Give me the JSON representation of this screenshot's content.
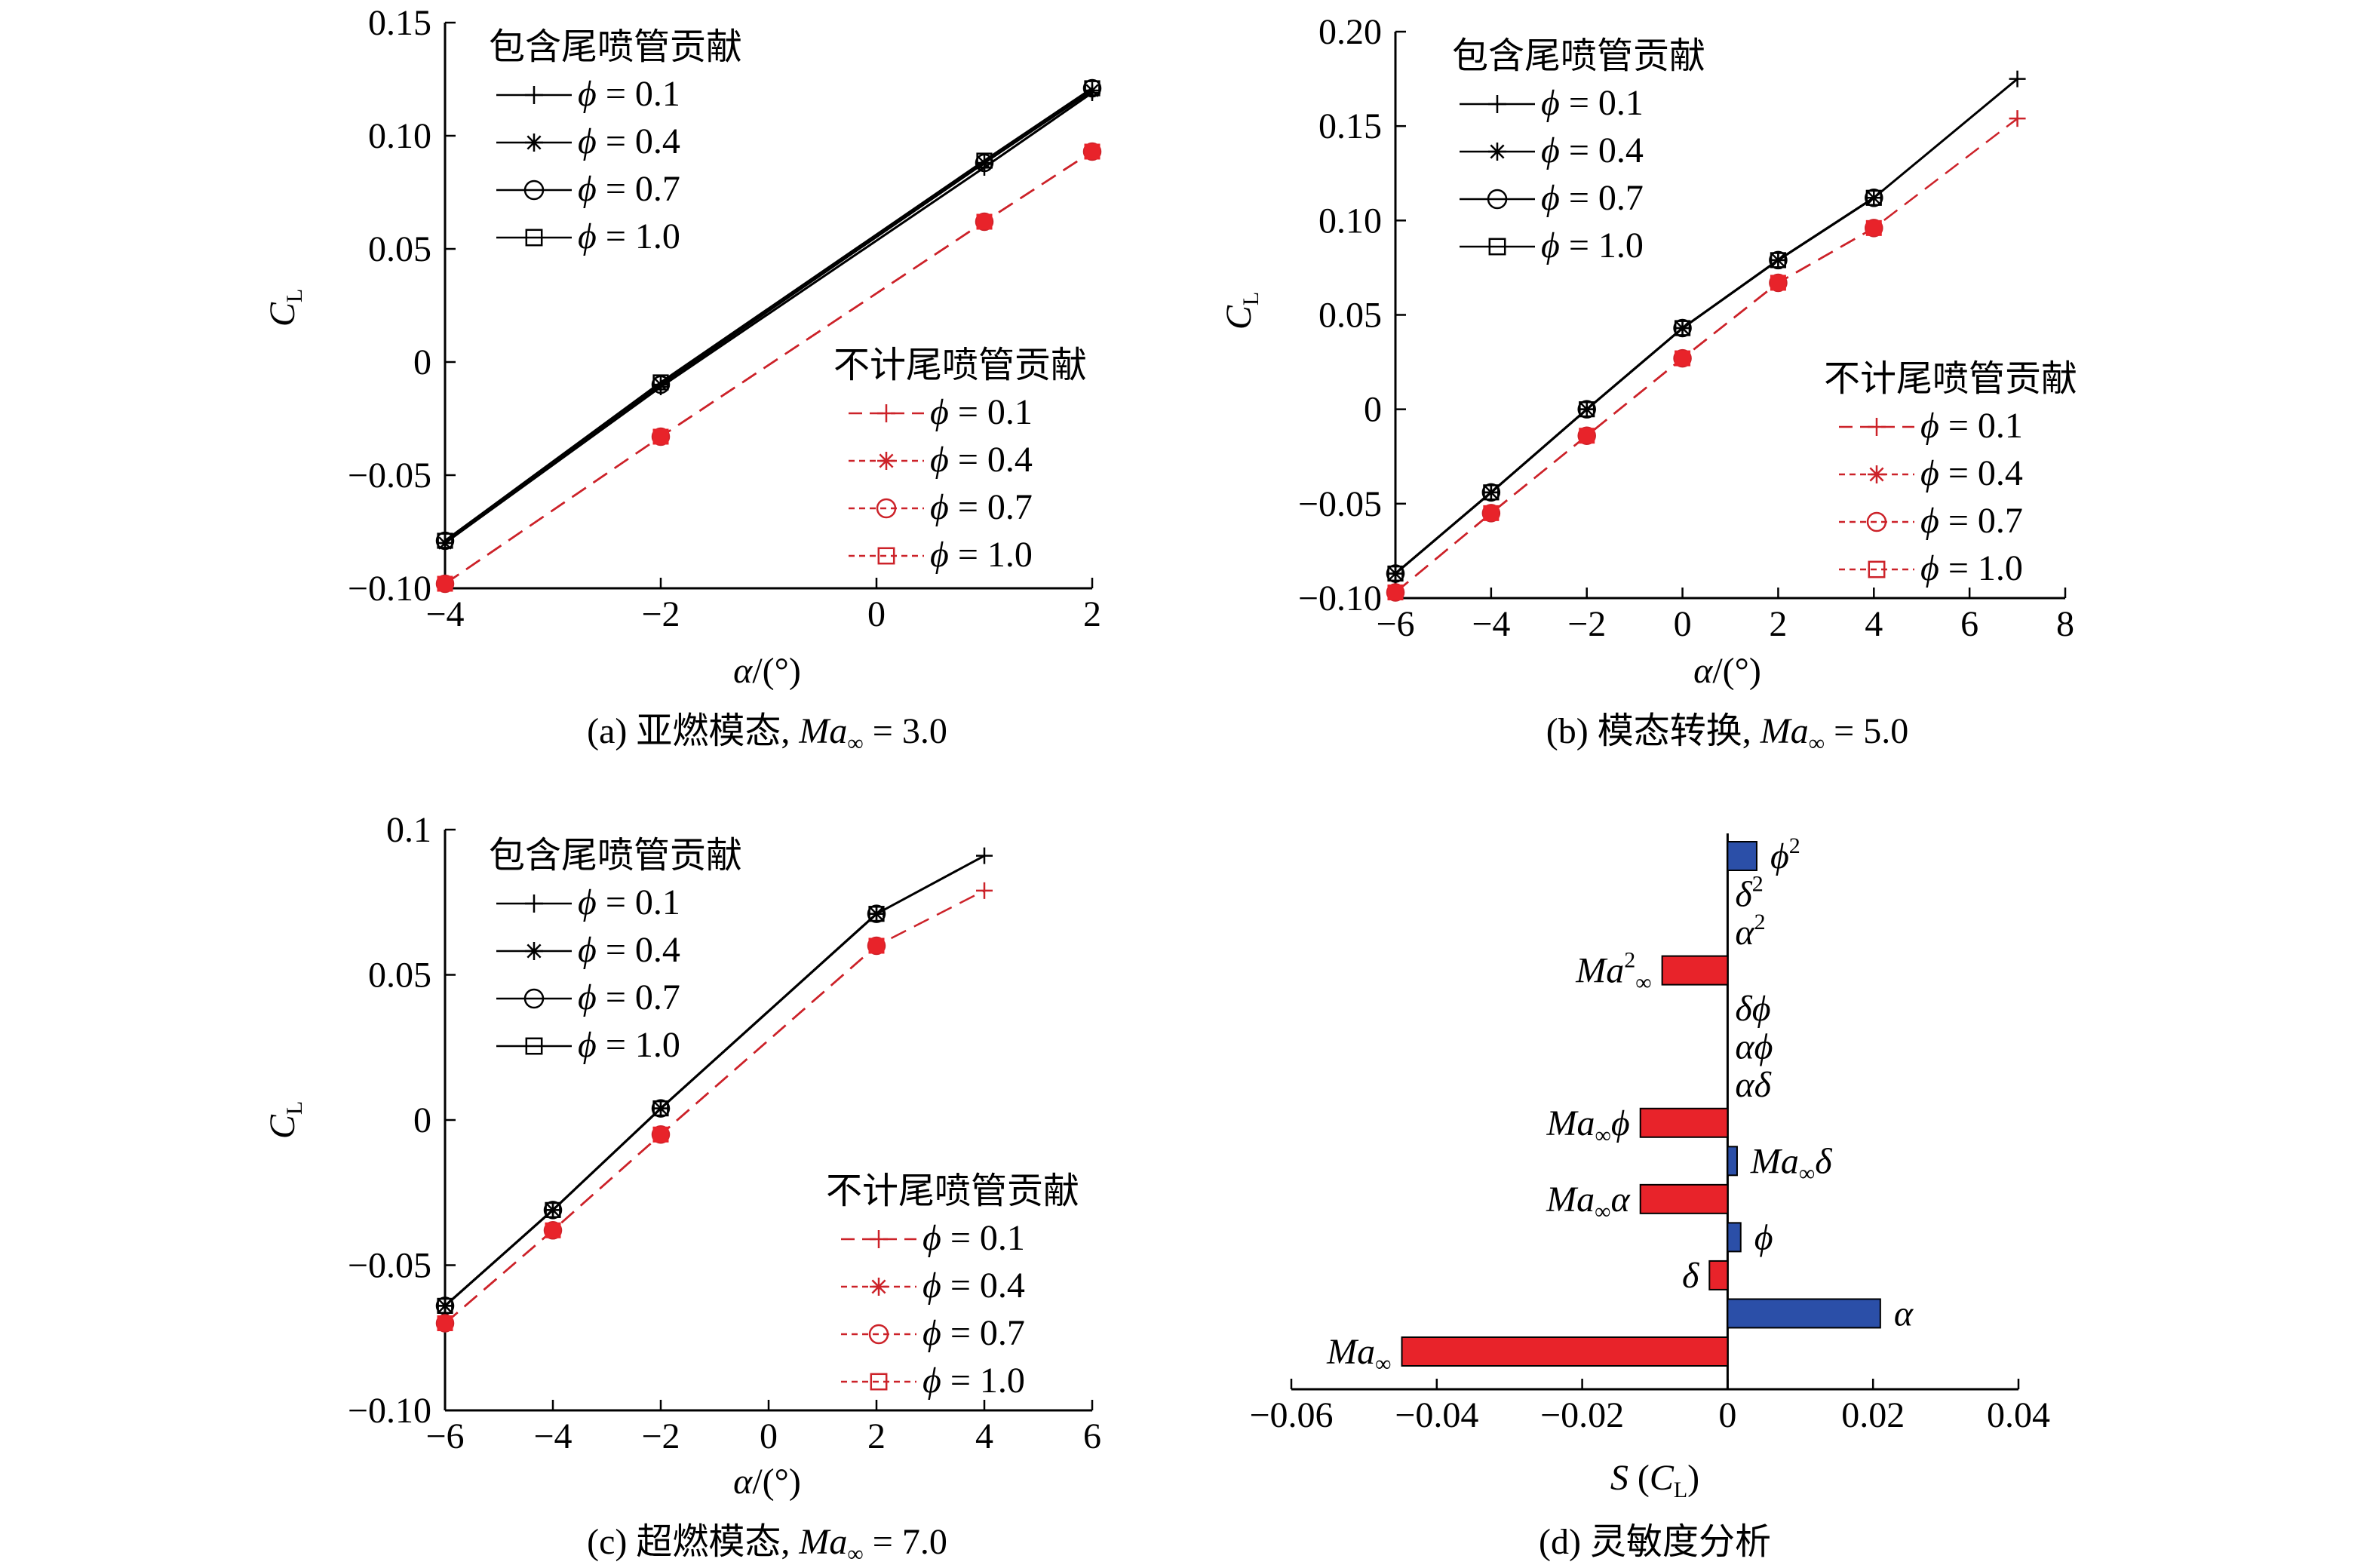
{
  "chart_data": [
    {
      "type": "line",
      "caption": {
        "prefix": "(a) 亚燃模态,",
        "var": "Ma",
        "sub": "∞",
        "suffix": "= 3.0"
      },
      "xlabel": {
        "var": "α",
        "unit": "/(°)"
      },
      "ylabel": {
        "var": "C",
        "sub": "L"
      },
      "xlim": [
        -4,
        2
      ],
      "ylim": [
        -0.1,
        0.15
      ],
      "xticks": [
        -4,
        -2,
        0,
        2
      ],
      "xtick_labels": [
        "−4",
        "−2",
        "0",
        "2"
      ],
      "yticks": [
        -0.1,
        -0.05,
        0,
        0.05,
        0.1,
        0.15
      ],
      "ytick_labels": [
        "−0.10",
        "−0.05",
        "0",
        "0.05",
        "0.10",
        "0.15"
      ],
      "legend_groups": [
        {
          "title": "包含尾喷管贡献",
          "color": "#000000",
          "style": "solid",
          "position": "top-left",
          "entries": [
            "= 0.1",
            "= 0.4",
            "= 0.7",
            "= 1.0"
          ]
        },
        {
          "title": "不计尾喷管贡献",
          "color": "#cc2229",
          "style": "dashed",
          "position": "lower-right",
          "entries": [
            "= 0.1",
            "= 0.4",
            "= 0.7",
            "= 1.0"
          ]
        }
      ],
      "legend_symbol": "ϕ",
      "series": [
        {
          "group": 0,
          "name": "ϕ = 0.1",
          "marker": "plus",
          "x": [
            -4,
            -2,
            1,
            2
          ],
          "y": [
            -0.08,
            -0.011,
            0.086,
            0.119
          ]
        },
        {
          "group": 0,
          "name": "ϕ = 0.4",
          "marker": "star",
          "x": [
            -4,
            -2,
            1,
            2
          ],
          "y": [
            -0.08,
            -0.01,
            0.088,
            0.12
          ]
        },
        {
          "group": 0,
          "name": "ϕ = 0.7",
          "marker": "circle",
          "x": [
            -4,
            -2,
            1,
            2
          ],
          "y": [
            -0.079,
            -0.01,
            0.088,
            0.121
          ]
        },
        {
          "group": 0,
          "name": "ϕ = 1.0",
          "marker": "square",
          "x": [
            -4,
            -2,
            1,
            2
          ],
          "y": [
            -0.079,
            -0.009,
            0.089,
            0.121
          ]
        },
        {
          "group": 1,
          "name": "ϕ = 0.1",
          "marker": "plus",
          "x": [
            -4,
            -2,
            1,
            2
          ],
          "y": [
            -0.098,
            -0.033,
            0.062,
            0.093
          ]
        },
        {
          "group": 1,
          "name": "ϕ = 0.4",
          "marker": "star",
          "x": [
            -4,
            -2,
            1,
            2
          ],
          "y": [
            -0.098,
            -0.033,
            0.062,
            0.093
          ]
        },
        {
          "group": 1,
          "name": "ϕ = 0.7",
          "marker": "circle",
          "x": [
            -4,
            -2,
            1,
            2
          ],
          "y": [
            -0.098,
            -0.033,
            0.062,
            0.093
          ]
        },
        {
          "group": 1,
          "name": "ϕ = 1.0",
          "marker": "square",
          "x": [
            -4,
            -2,
            1,
            2
          ],
          "y": [
            -0.098,
            -0.033,
            0.062,
            0.093
          ]
        }
      ]
    },
    {
      "type": "line",
      "caption": {
        "prefix": "(b) 模态转换,",
        "var": "Ma",
        "sub": "∞",
        "suffix": "= 5.0"
      },
      "xlabel": {
        "var": "α",
        "unit": "/(°)"
      },
      "ylabel": {
        "var": "C",
        "sub": "L"
      },
      "xlim": [
        -6,
        8
      ],
      "ylim": [
        -0.1,
        0.2
      ],
      "xticks": [
        -6,
        -4,
        -2,
        0,
        2,
        4,
        6,
        8
      ],
      "xtick_labels": [
        "−6",
        "−4",
        "−2",
        "0",
        "2",
        "4",
        "6",
        "8"
      ],
      "yticks": [
        -0.1,
        -0.05,
        0,
        0.05,
        0.1,
        0.15,
        0.2
      ],
      "ytick_labels": [
        "−0.10",
        "−0.05",
        "0",
        "0.05",
        "0.10",
        "0.15",
        "0.20"
      ],
      "legend_groups": [
        {
          "title": "包含尾喷管贡献",
          "color": "#000000",
          "style": "solid",
          "position": "top-left",
          "entries": [
            "= 0.1",
            "= 0.4",
            "= 0.7",
            "= 1.0"
          ]
        },
        {
          "title": "不计尾喷管贡献",
          "color": "#cc2229",
          "style": "dashed",
          "position": "lower-right",
          "entries": [
            "= 0.1",
            "= 0.4",
            "= 0.7",
            "= 1.0"
          ]
        }
      ],
      "legend_symbol": "ϕ",
      "series": [
        {
          "group": 0,
          "name": "ϕ = 0.1",
          "marker": "plus",
          "x": [
            -6,
            -4,
            -2,
            0,
            2,
            4,
            7
          ],
          "y": [
            -0.087,
            -0.044,
            0.0,
            0.043,
            0.079,
            0.112,
            0.175
          ]
        },
        {
          "group": 0,
          "name": "ϕ = 0.4",
          "marker": "star",
          "x": [
            -6,
            -4,
            -2,
            0,
            2,
            4
          ],
          "y": [
            -0.087,
            -0.044,
            0.0,
            0.043,
            0.079,
            0.112
          ]
        },
        {
          "group": 0,
          "name": "ϕ = 0.7",
          "marker": "circle",
          "x": [
            -6,
            -4,
            -2,
            0,
            2,
            4
          ],
          "y": [
            -0.087,
            -0.044,
            0.0,
            0.043,
            0.079,
            0.112
          ]
        },
        {
          "group": 0,
          "name": "ϕ = 1.0",
          "marker": "square",
          "x": [
            -6,
            -4,
            -2,
            0,
            2,
            4
          ],
          "y": [
            -0.087,
            -0.044,
            0.0,
            0.043,
            0.079,
            0.112
          ]
        },
        {
          "group": 1,
          "name": "ϕ = 0.1",
          "marker": "plus",
          "x": [
            -6,
            -4,
            -2,
            0,
            2,
            4,
            7
          ],
          "y": [
            -0.097,
            -0.055,
            -0.014,
            0.027,
            0.067,
            0.096,
            0.154
          ]
        },
        {
          "group": 1,
          "name": "ϕ = 0.4",
          "marker": "star",
          "x": [
            -6,
            -4,
            -2,
            0,
            2,
            4
          ],
          "y": [
            -0.097,
            -0.055,
            -0.014,
            0.027,
            0.067,
            0.096
          ]
        },
        {
          "group": 1,
          "name": "ϕ = 0.7",
          "marker": "circle",
          "x": [
            -6,
            -4,
            -2,
            0,
            2,
            4
          ],
          "y": [
            -0.097,
            -0.055,
            -0.014,
            0.027,
            0.067,
            0.096
          ]
        },
        {
          "group": 1,
          "name": "ϕ = 1.0",
          "marker": "square",
          "x": [
            -6,
            -4,
            -2,
            0,
            2,
            4
          ],
          "y": [
            -0.097,
            -0.055,
            -0.014,
            0.027,
            0.067,
            0.096
          ]
        }
      ]
    },
    {
      "type": "line",
      "caption": {
        "prefix": "(c) 超燃模态,",
        "var": "Ma",
        "sub": "∞",
        "suffix": "= 7.0"
      },
      "xlabel": {
        "var": "α",
        "unit": "/(°)"
      },
      "ylabel": {
        "var": "C",
        "sub": "L"
      },
      "xlim": [
        -6,
        6
      ],
      "ylim": [
        -0.1,
        0.1
      ],
      "xticks": [
        -6,
        -4,
        -2,
        0,
        2,
        4,
        6
      ],
      "xtick_labels": [
        "−6",
        "−4",
        "−2",
        "0",
        "2",
        "4",
        "6"
      ],
      "yticks": [
        -0.1,
        -0.05,
        0,
        0.05,
        0.1
      ],
      "ytick_labels": [
        "−0.10",
        "−0.05",
        "0",
        "0.05",
        "0.1"
      ],
      "legend_groups": [
        {
          "title": "包含尾喷管贡献",
          "color": "#000000",
          "style": "solid",
          "position": "top-left",
          "entries": [
            "= 0.1",
            "= 0.4",
            "= 0.7",
            "= 1.0"
          ]
        },
        {
          "title": "不计尾喷管贡献",
          "color": "#cc2229",
          "style": "dashed",
          "position": "lower-right",
          "entries": [
            "= 0.1",
            "= 0.4",
            "= 0.7",
            "= 1.0"
          ]
        }
      ],
      "legend_symbol": "ϕ",
      "series": [
        {
          "group": 0,
          "name": "ϕ = 0.1",
          "marker": "plus",
          "x": [
            -6,
            -4,
            -2,
            2,
            4
          ],
          "y": [
            -0.064,
            -0.031,
            0.004,
            0.071,
            0.091
          ]
        },
        {
          "group": 0,
          "name": "ϕ = 0.4",
          "marker": "star",
          "x": [
            -6,
            -4,
            -2,
            2
          ],
          "y": [
            -0.064,
            -0.031,
            0.004,
            0.071
          ]
        },
        {
          "group": 0,
          "name": "ϕ = 0.7",
          "marker": "circle",
          "x": [
            -6,
            -4,
            -2,
            2
          ],
          "y": [
            -0.064,
            -0.031,
            0.004,
            0.071
          ]
        },
        {
          "group": 0,
          "name": "ϕ = 1.0",
          "marker": "square",
          "x": [
            -6,
            -4,
            -2,
            2
          ],
          "y": [
            -0.064,
            -0.031,
            0.004,
            0.071
          ]
        },
        {
          "group": 1,
          "name": "ϕ = 0.1",
          "marker": "plus",
          "x": [
            -6,
            -4,
            -2,
            2,
            4
          ],
          "y": [
            -0.07,
            -0.038,
            -0.005,
            0.06,
            0.079
          ]
        },
        {
          "group": 1,
          "name": "ϕ = 0.4",
          "marker": "star",
          "x": [
            -6,
            -4,
            -2,
            2
          ],
          "y": [
            -0.07,
            -0.038,
            -0.005,
            0.06
          ]
        },
        {
          "group": 1,
          "name": "ϕ = 0.7",
          "marker": "circle",
          "x": [
            -6,
            -4,
            -2,
            2
          ],
          "y": [
            -0.07,
            -0.038,
            -0.005,
            0.06
          ]
        },
        {
          "group": 1,
          "name": "ϕ = 1.0",
          "marker": "square",
          "x": [
            -6,
            -4,
            -2,
            2
          ],
          "y": [
            -0.07,
            -0.038,
            -0.005,
            0.06
          ]
        }
      ]
    },
    {
      "type": "bar",
      "orientation": "horizontal",
      "caption": {
        "prefix": "(d) 灵敏度分析"
      },
      "xlabel": {
        "var": "S",
        "paren_var": "C",
        "sub": "L"
      },
      "xlim": [
        -0.06,
        0.04
      ],
      "xticks": [
        -0.06,
        -0.04,
        -0.02,
        0,
        0.02,
        0.04
      ],
      "xtick_labels": [
        "−0.06",
        "−0.04",
        "−0.02",
        "0",
        "0.02",
        "0.04"
      ],
      "colors": {
        "positive": "#2b4fa8",
        "negative": "#e8232a"
      },
      "categories": [
        {
          "parts": [
            {
              "t": "ϕ"
            },
            {
              "t": "2",
              "sup": true
            }
          ],
          "value": 0.004
        },
        {
          "parts": [
            {
              "t": "δ"
            },
            {
              "t": "2",
              "sup": true
            }
          ],
          "value": 0
        },
        {
          "parts": [
            {
              "t": "α"
            },
            {
              "t": "2",
              "sup": true
            }
          ],
          "value": 0
        },
        {
          "parts": [
            {
              "t": "Ma"
            },
            {
              "t": "2",
              "sup": true
            },
            {
              "t": "∞",
              "sub": true
            }
          ],
          "value": -0.009
        },
        {
          "parts": [
            {
              "t": "δϕ"
            }
          ],
          "value": 0
        },
        {
          "parts": [
            {
              "t": "αϕ"
            }
          ],
          "value": 0
        },
        {
          "parts": [
            {
              "t": "αδ"
            }
          ],
          "value": 0
        },
        {
          "parts": [
            {
              "t": "Ma"
            },
            {
              "t": "∞",
              "sub": true
            },
            {
              "t": "ϕ"
            }
          ],
          "value": -0.012
        },
        {
          "parts": [
            {
              "t": "Ma"
            },
            {
              "t": "∞",
              "sub": true
            },
            {
              "t": "δ"
            }
          ],
          "value": 0.0013
        },
        {
          "parts": [
            {
              "t": "Ma"
            },
            {
              "t": "∞",
              "sub": true
            },
            {
              "t": "α"
            }
          ],
          "value": -0.012
        },
        {
          "parts": [
            {
              "t": "ϕ"
            }
          ],
          "value": 0.0018
        },
        {
          "parts": [
            {
              "t": "δ"
            }
          ],
          "value": -0.0025
        },
        {
          "parts": [
            {
              "t": "α"
            }
          ],
          "value": 0.021
        },
        {
          "parts": [
            {
              "t": "Ma"
            },
            {
              "t": "∞",
              "sub": true
            }
          ],
          "value": -0.0448
        }
      ]
    }
  ]
}
